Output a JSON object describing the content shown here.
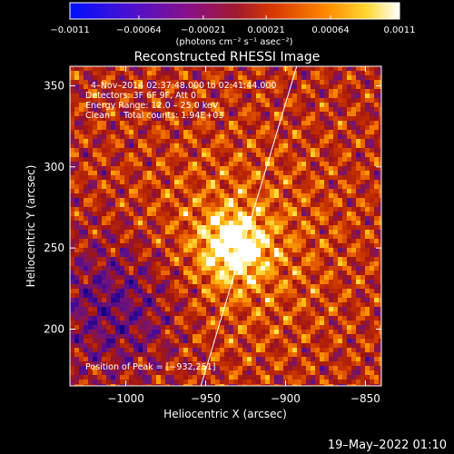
{
  "chart_data": {
    "type": "heatmap",
    "title": "Reconstructed RHESSI Image",
    "xlabel": "Heliocentric X (arcsec)",
    "ylabel": "Heliocentric Y (arcsec)",
    "xlim": [
      -1035,
      -840
    ],
    "ylim": [
      165,
      362
    ],
    "x_ticks": [
      -1000,
      -950,
      -900,
      -850
    ],
    "y_ticks": [
      200,
      250,
      300,
      350
    ],
    "x_tick_labels": [
      "−1000",
      "−950",
      "−900",
      "−850"
    ],
    "y_tick_labels": [
      "200",
      "250",
      "300",
      "350"
    ],
    "colorbar": {
      "ticks": [
        -0.0011,
        -0.00064,
        -0.00021,
        0.00021,
        0.00064,
        0.0011
      ],
      "tick_labels": [
        "−0.0011",
        "−0.00064",
        "−0.00021",
        "0.00021",
        "0.00064",
        "0.0011"
      ],
      "unit_label": "(photons cm⁻² s⁻¹ asec⁻²)",
      "colors": [
        "#0010ff",
        "#5010c0",
        "#8a1080",
        "#b02000",
        "#e05000",
        "#ffa000",
        "#ffe040",
        "#ffffff"
      ]
    },
    "annotations": {
      "time": "4–Nov–2014 02:37:48.000 to 02:41:44.000",
      "detectors": "Detectors: 3F 6F 9F, Att 0",
      "energy": "Energy Range: 12.0 – 25.0 keV",
      "method": "Clean     Total counts: 1.94E+03",
      "peak": "Position of Peak = [−932,251]"
    },
    "peak": {
      "x": -932,
      "y": 251
    },
    "limb_line": [
      {
        "x": -953,
        "y": 165
      },
      {
        "x": -893,
        "y": 362
      }
    ],
    "footer_date": "19–May–2022 01:10"
  }
}
